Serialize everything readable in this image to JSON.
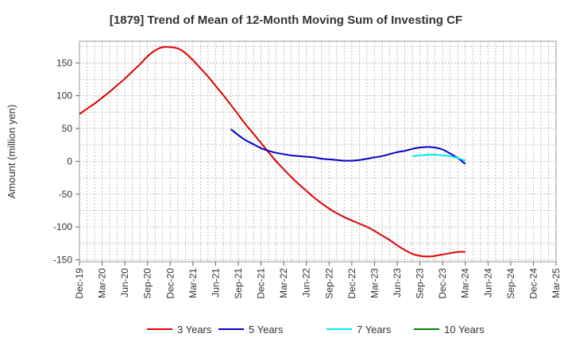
{
  "chart_data": {
    "type": "line",
    "title": "[1879]  Trend of Mean of 12-Month Moving Sum of Investing CF",
    "xlabel": "",
    "ylabel": "Amount (million yen)",
    "ylim": [
      -153,
      183
    ],
    "yticks": [
      150,
      100,
      50,
      0,
      -50,
      -100,
      -150
    ],
    "categories": [
      "Dec-19",
      "Mar-20",
      "Jun-20",
      "Sep-20",
      "Dec-20",
      "Mar-21",
      "Jun-21",
      "Sep-21",
      "Dec-21",
      "Mar-22",
      "Jun-22",
      "Sep-22",
      "Dec-22",
      "Mar-23",
      "Jun-23",
      "Sep-23",
      "Dec-23",
      "Mar-24",
      "Jun-24",
      "Sep-24",
      "Dec-24",
      "Mar-25"
    ],
    "series": [
      {
        "name": "3 Years",
        "color": "#e00000",
        "x": [
          0,
          0.33,
          0.67,
          1,
          1.33,
          1.67,
          2,
          2.33,
          2.67,
          3,
          3.33,
          3.67,
          4,
          4.33,
          4.67,
          5,
          5.33,
          5.67,
          6,
          6.33,
          6.67,
          7,
          7.33,
          7.67,
          8,
          8.33,
          8.67,
          9,
          9.33,
          9.67,
          10,
          10.33,
          10.67,
          11,
          11.33,
          11.67,
          12,
          12.33,
          12.67,
          13,
          13.33,
          13.67,
          14,
          14.33,
          14.67,
          15,
          15.33,
          15.67,
          16,
          16.33,
          16.67,
          17
        ],
        "values": [
          72,
          80,
          88,
          97,
          106,
          116,
          126,
          137,
          148,
          160,
          169,
          174,
          174,
          172,
          165,
          154,
          142,
          129,
          115,
          101,
          86,
          71,
          56,
          42,
          28,
          14,
          0,
          -12,
          -24,
          -35,
          -45,
          -55,
          -64,
          -72,
          -79,
          -85,
          -90,
          -95,
          -100,
          -106,
          -113,
          -120,
          -128,
          -135,
          -141,
          -144,
          -145,
          -144,
          -142,
          -140,
          -138,
          -138
        ],
        "series_end": 17
      },
      {
        "name": "5 Years",
        "color": "#0000c8",
        "x": [
          6.67,
          7,
          7.33,
          7.67,
          8,
          8.33,
          8.67,
          9,
          9.33,
          9.67,
          10,
          10.33,
          10.67,
          11,
          11.33,
          11.67,
          12,
          12.33,
          12.67,
          13,
          13.33,
          13.67,
          14,
          14.33,
          14.67,
          15,
          15.33,
          15.67,
          16,
          16.33,
          16.67,
          17
        ],
        "values": [
          49,
          40,
          32,
          26,
          20,
          16,
          13,
          11,
          9,
          8,
          7,
          6,
          4,
          3,
          2,
          1,
          1,
          2,
          4,
          6,
          8,
          11,
          14,
          16,
          19,
          21,
          22,
          21,
          18,
          12,
          5,
          -4
        ]
      },
      {
        "name": "7 Years",
        "color": "#00e8e8",
        "x": [
          14.67,
          15,
          15.33,
          15.67,
          16,
          16.33,
          16.67,
          17
        ],
        "values": [
          8,
          9,
          10,
          10,
          9,
          8,
          5,
          1
        ]
      },
      {
        "name": "10 Years",
        "color": "#008000",
        "x": [],
        "values": []
      }
    ],
    "legend_position": "bottom",
    "grid": true
  }
}
